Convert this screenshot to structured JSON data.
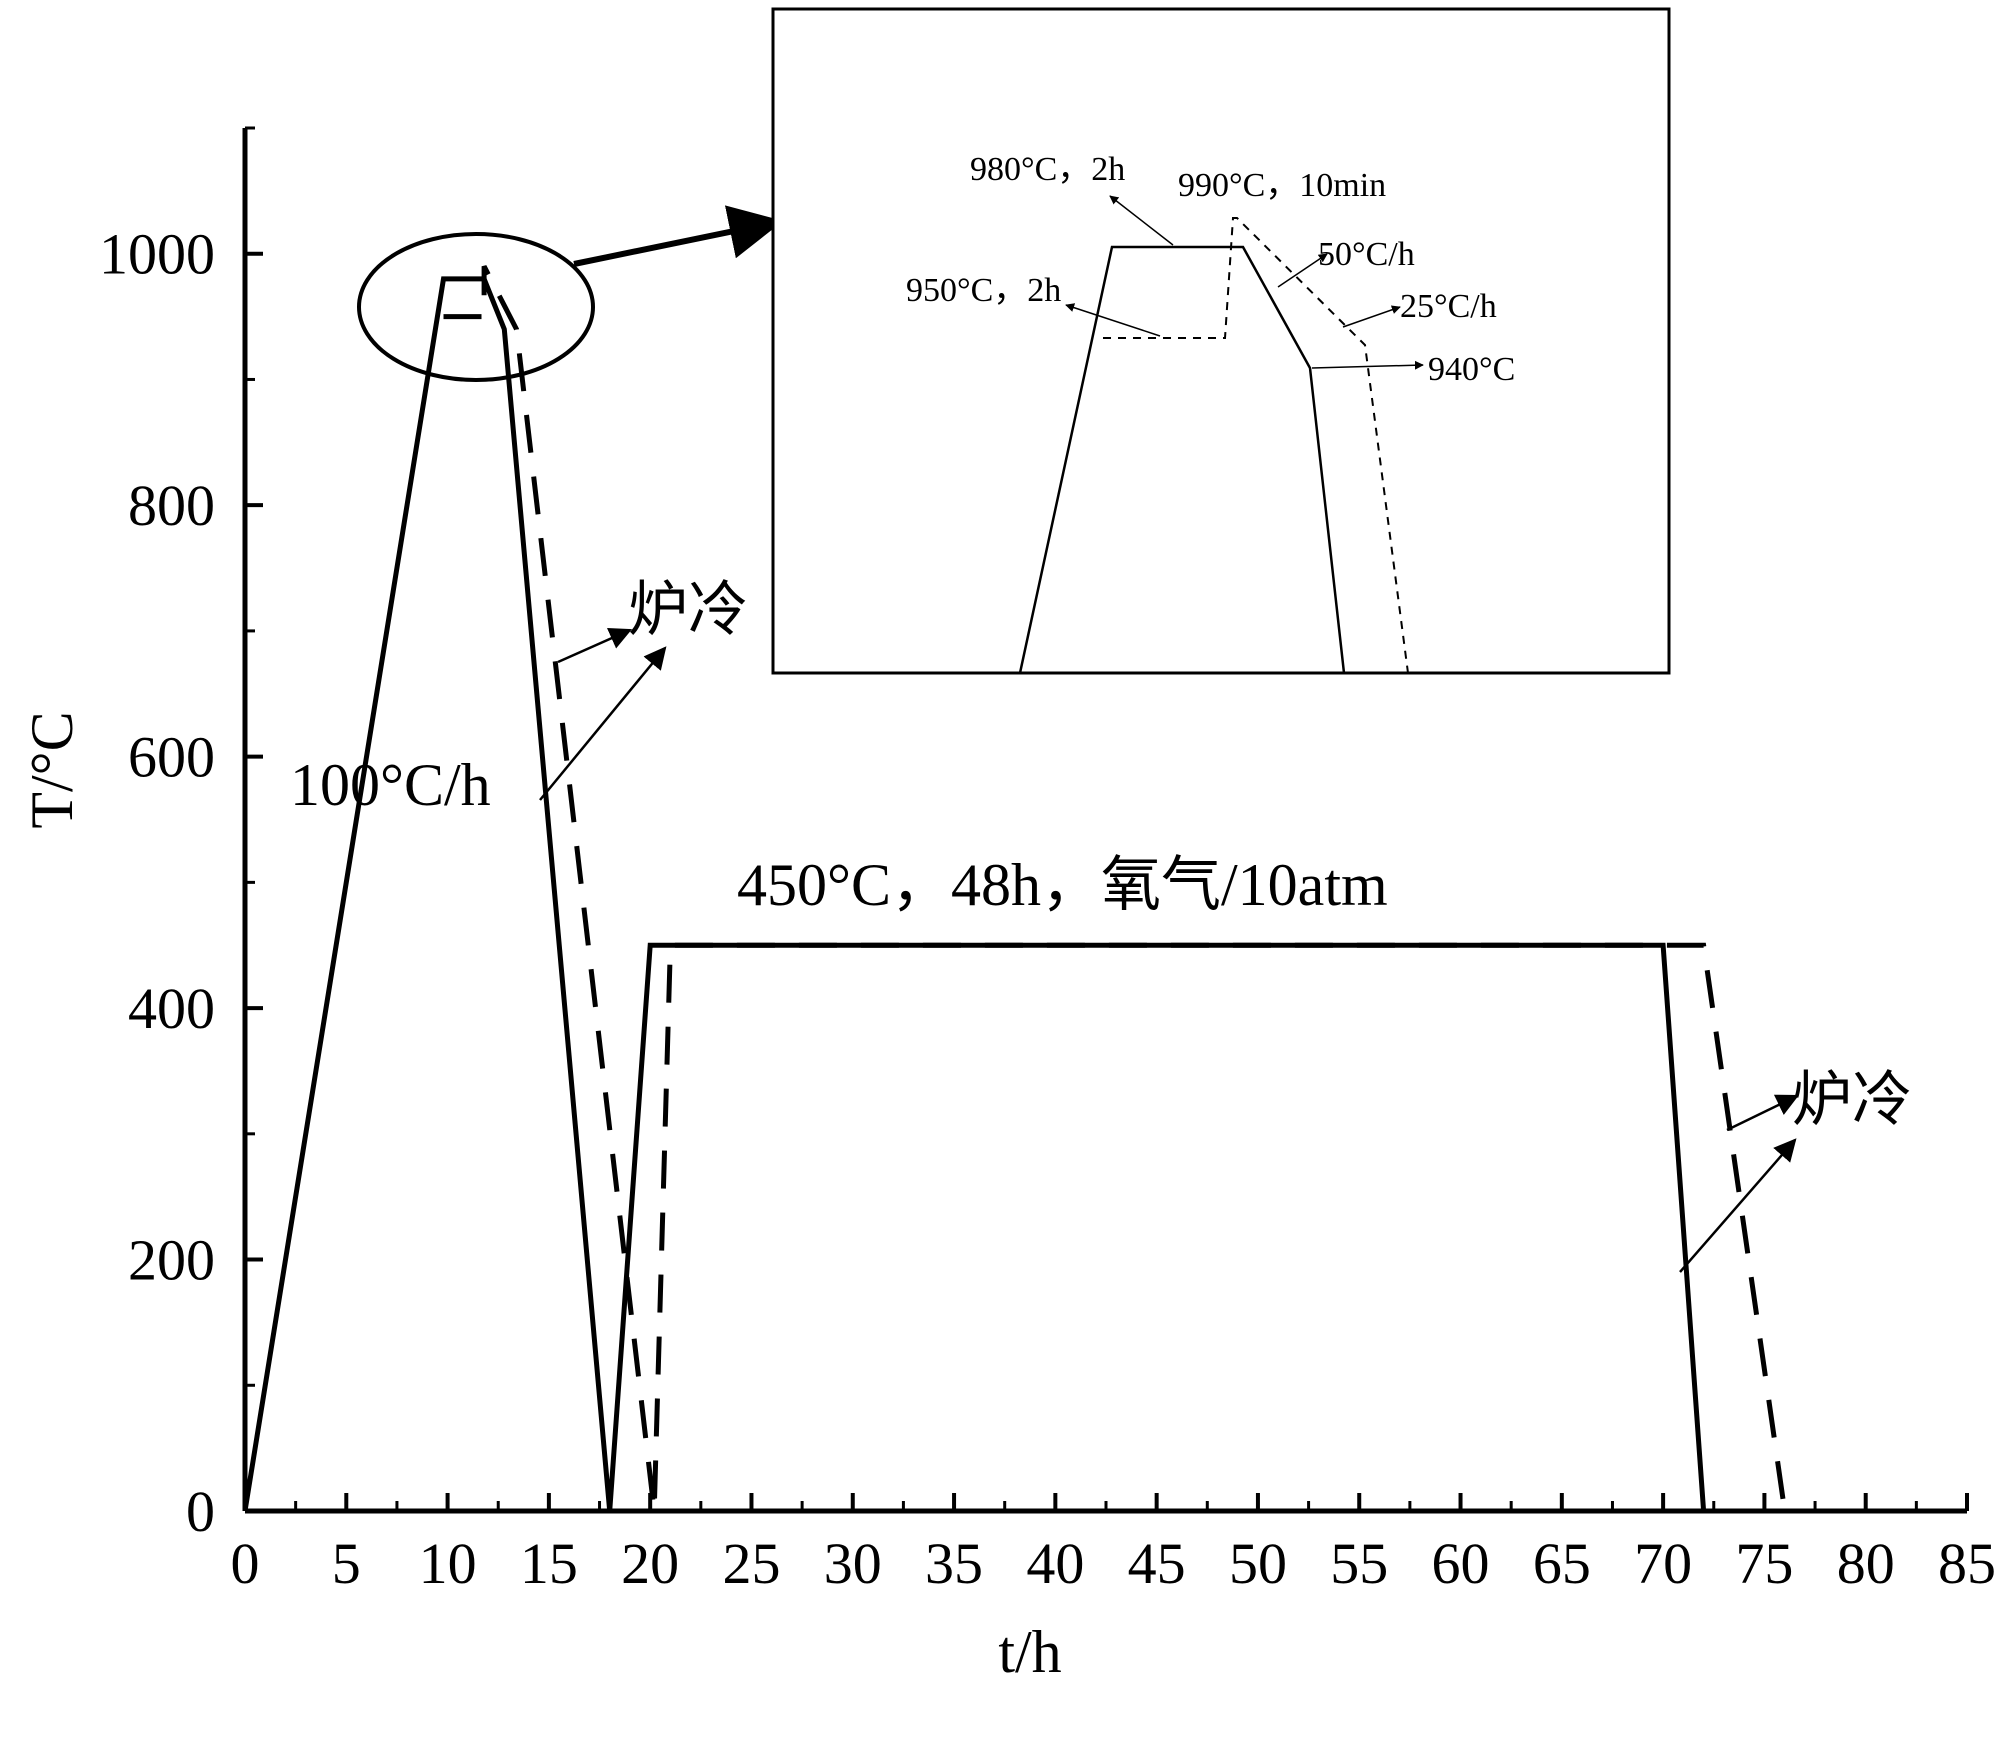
{
  "chart_data": {
    "type": "line",
    "xlabel": "t/h",
    "ylabel": "T/°C",
    "xlim": [
      0,
      85
    ],
    "ylim": [
      0,
      1100
    ],
    "x_ticks": [
      0,
      5,
      10,
      15,
      20,
      25,
      30,
      35,
      40,
      45,
      50,
      55,
      60,
      65,
      70,
      75,
      80,
      85
    ],
    "y_ticks": [
      0,
      200,
      400,
      600,
      800,
      1000
    ],
    "grid": false,
    "series": [
      {
        "style": "solid",
        "points": [
          [
            0,
            0
          ],
          [
            9.8,
            980
          ],
          [
            11.8,
            980
          ],
          [
            12.8,
            940
          ],
          [
            18,
            0
          ],
          [
            20,
            450
          ],
          [
            70,
            450
          ],
          [
            72,
            0
          ]
        ]
      },
      {
        "style": "dashed",
        "points": [
          [
            9.8,
            950
          ],
          [
            11.8,
            950
          ],
          [
            11.8,
            990
          ],
          [
            13.4,
            940
          ],
          [
            20.2,
            0
          ],
          [
            21,
            450
          ],
          [
            72,
            450
          ],
          [
            76,
            0
          ]
        ]
      }
    ],
    "annotations": {
      "rate": "100°C/h",
      "furnace_cool_1": "炉冷",
      "furnace_cool_2": "炉冷",
      "anneal": "450°C，48h，氧气/10atm"
    },
    "inset": {
      "labels": {
        "hold_980": "980°C，2h",
        "hold_990": "990°C，10min",
        "hold_950": "950°C，2h",
        "rate_50": "50°C/h",
        "rate_25": "25°C/h",
        "temp_940": "940°C"
      }
    }
  }
}
